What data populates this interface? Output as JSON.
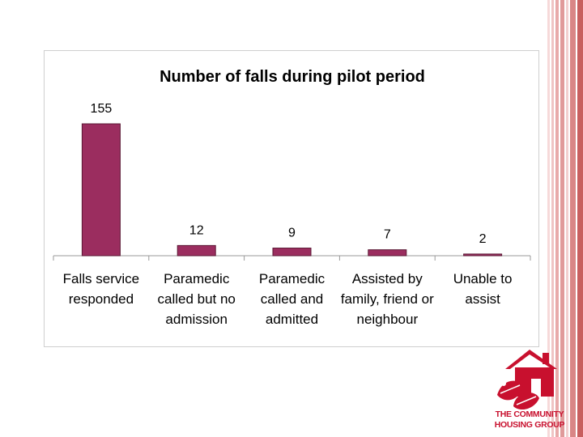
{
  "colors": {
    "bar": "#9b2d5f",
    "bar_stroke": "#5a1733",
    "axis": "#9a9a9a",
    "text": "#000000",
    "brand": "#c8102e"
  },
  "chart_data": {
    "type": "bar",
    "title": "Number of falls during pilot period",
    "categories": [
      [
        "Falls service",
        "responded"
      ],
      [
        "Paramedic",
        "called but no",
        "admission"
      ],
      [
        "Paramedic",
        "called and",
        "admitted"
      ],
      [
        "Assisted by",
        "family, friend or",
        "neighbour"
      ],
      [
        "Unable to",
        "assist"
      ]
    ],
    "values": [
      155,
      12,
      9,
      7,
      2
    ],
    "data_labels": [
      "155",
      "12",
      "9",
      "7",
      "2"
    ],
    "xlabel": "",
    "ylabel": "",
    "ylim": [
      0,
      155
    ],
    "grid": false,
    "legend": "none"
  },
  "logo": {
    "line1": "THE COMMUNITY",
    "line2": "HOUSING GROUP",
    "icon": "house-leaves-icon"
  }
}
